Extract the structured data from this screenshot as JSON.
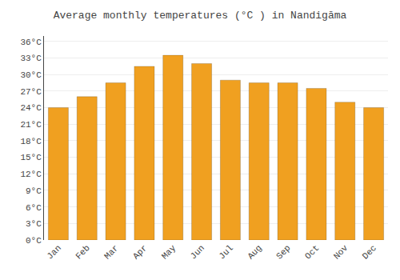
{
  "chart_data": {
    "type": "bar",
    "title": "Average monthly temperatures (°C ) in Nandigāma",
    "categories": [
      "Jan",
      "Feb",
      "Mar",
      "Apr",
      "May",
      "Jun",
      "Jul",
      "Aug",
      "Sep",
      "Oct",
      "Nov",
      "Dec"
    ],
    "values": [
      24.0,
      26.0,
      28.5,
      31.5,
      33.5,
      32.0,
      29.0,
      28.5,
      28.5,
      27.5,
      25.0,
      24.0
    ],
    "color": "#F0A020",
    "ylim": [
      0,
      37
    ],
    "yticks": [
      {
        "value": 0,
        "label": "0°C"
      },
      {
        "value": 3,
        "label": "3°C"
      },
      {
        "value": 6,
        "label": "6°C"
      },
      {
        "value": 9,
        "label": "9°C"
      },
      {
        "value": 12,
        "label": "12°C"
      },
      {
        "value": 15,
        "label": "15°C"
      },
      {
        "value": 18,
        "label": "18°C"
      },
      {
        "value": 21,
        "label": "21°C"
      },
      {
        "value": 24,
        "label": "24°C"
      },
      {
        "value": 27,
        "label": "27°C"
      },
      {
        "value": 30,
        "label": "30°C"
      },
      {
        "value": 33,
        "label": "33°C"
      },
      {
        "value": 36,
        "label": "36°C"
      }
    ],
    "grid": true
  }
}
